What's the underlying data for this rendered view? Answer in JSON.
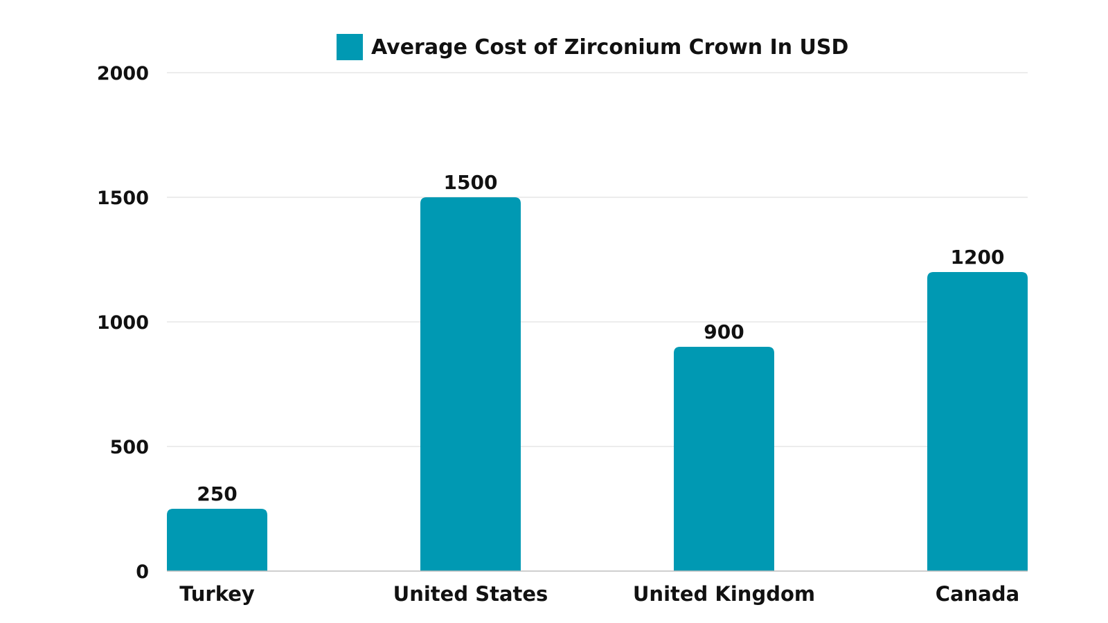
{
  "chart_data": {
    "type": "bar",
    "categories": [
      "Turkey",
      "United States",
      "United Kingdom",
      "Canada"
    ],
    "series": [
      {
        "name": "Average Cost of Zirconium Crown In USD",
        "values": [
          250,
          1500,
          900,
          1200
        ],
        "color": "#0099b3"
      }
    ],
    "ylim": [
      0,
      2000
    ],
    "yticks": [
      0,
      500,
      1000,
      1500,
      2000
    ],
    "title": "",
    "xlabel": "",
    "ylabel": "",
    "grid": true,
    "legend_position": "top-center",
    "data_labels": true,
    "colors": {
      "bar": "#0099b3",
      "grid": "#d9d9d9",
      "axis": "#bfbfbf",
      "text": "#111111"
    }
  }
}
